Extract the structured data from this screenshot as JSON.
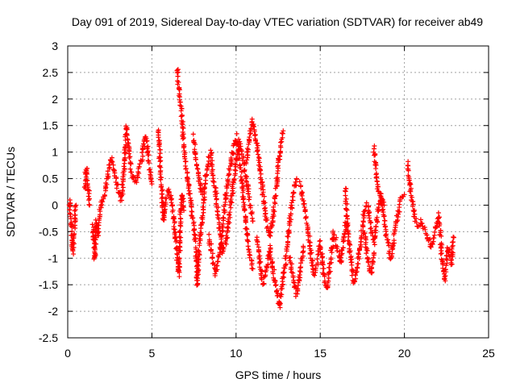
{
  "chart_data": {
    "type": "scatter",
    "title": "Day 091 of 2019, Sidereal Day-to-day VTEC variation (SDTVAR) for receiver ab49",
    "xlabel": "GPS time / hours",
    "ylabel": "SDTVAR / TECUs",
    "xlim": [
      0,
      25
    ],
    "ylim": [
      -2.5,
      3
    ],
    "x_ticks": [
      0,
      5,
      10,
      15,
      20,
      25
    ],
    "x_tick_labels": [
      "0",
      "5",
      "10",
      "15",
      "20",
      "25"
    ],
    "y_ticks": [
      -2.5,
      -2,
      -1.5,
      -1,
      -0.5,
      0,
      0.5,
      1,
      1.5,
      2,
      2.5,
      3
    ],
    "y_tick_labels": [
      "-2.5",
      "-2",
      "-1.5",
      "-1",
      "-0.5",
      "0",
      "0.5",
      "1",
      "1.5",
      "2",
      "2.5",
      "3"
    ],
    "grid": true,
    "marker": "+",
    "color": "#ff0000",
    "series": [
      {
        "name": "SDTVAR",
        "tracks": [
          [
            [
              0.1,
              0.1
            ],
            [
              0.2,
              -0.4
            ],
            [
              0.3,
              -0.9
            ],
            [
              0.4,
              -0.4
            ],
            [
              0.5,
              0.0
            ]
          ],
          [
            [
              1.0,
              0.3
            ],
            [
              1.1,
              0.7
            ],
            [
              1.2,
              0.4
            ],
            [
              1.3,
              0.0
            ]
          ],
          [
            [
              1.5,
              -0.4
            ],
            [
              1.6,
              -1.0
            ],
            [
              1.7,
              -0.3
            ],
            [
              1.8,
              -0.6
            ],
            [
              1.9,
              -0.2
            ],
            [
              2.0,
              0.1
            ],
            [
              2.2,
              0.2
            ],
            [
              2.4,
              0.6
            ],
            [
              2.6,
              0.9
            ],
            [
              2.8,
              0.6
            ],
            [
              3.0,
              0.3
            ],
            [
              3.2,
              0.1
            ],
            [
              3.4,
              0.9
            ],
            [
              3.5,
              1.5
            ],
            [
              3.6,
              1.1
            ],
            [
              3.8,
              0.6
            ],
            [
              4.0,
              0.4
            ],
            [
              4.2,
              0.6
            ],
            [
              4.4,
              0.9
            ],
            [
              4.6,
              1.3
            ],
            [
              4.8,
              0.9
            ],
            [
              5.0,
              0.4
            ]
          ],
          [
            [
              5.4,
              1.4
            ],
            [
              5.5,
              0.7
            ],
            [
              5.6,
              0.2
            ],
            [
              5.7,
              -0.3
            ],
            [
              5.8,
              0.1
            ],
            [
              6.0,
              0.3
            ],
            [
              6.2,
              0.0
            ],
            [
              6.4,
              -0.6
            ],
            [
              6.6,
              -1.3
            ],
            [
              6.7,
              -0.2
            ],
            [
              6.8,
              0.2
            ],
            [
              6.9,
              -0.1
            ]
          ],
          [
            [
              6.5,
              2.6
            ],
            [
              6.6,
              2.2
            ],
            [
              6.7,
              1.9
            ],
            [
              6.8,
              1.6
            ],
            [
              6.9,
              1.1
            ],
            [
              7.0,
              0.8
            ],
            [
              7.2,
              0.3
            ],
            [
              7.4,
              -0.2
            ],
            [
              7.6,
              -0.8
            ],
            [
              7.7,
              -1.5
            ],
            [
              7.8,
              -0.8
            ],
            [
              8.0,
              -0.2
            ],
            [
              8.2,
              0.5
            ],
            [
              8.4,
              0.9
            ]
          ],
          [
            [
              7.5,
              1.3
            ],
            [
              7.6,
              0.9
            ],
            [
              7.8,
              0.5
            ],
            [
              8.0,
              0.2
            ]
          ],
          [
            [
              8.5,
              1.0
            ],
            [
              8.6,
              0.6
            ],
            [
              8.8,
              0.2
            ],
            [
              9.0,
              -0.4
            ],
            [
              9.2,
              -0.9
            ],
            [
              9.4,
              -0.7
            ],
            [
              9.6,
              -0.2
            ],
            [
              9.8,
              0.3
            ],
            [
              10.0,
              0.8
            ],
            [
              10.2,
              1.2
            ],
            [
              10.4,
              0.9
            ],
            [
              10.6,
              0.5
            ],
            [
              10.8,
              0.1
            ],
            [
              11.0,
              -0.3
            ]
          ],
          [
            [
              8.4,
              -0.6
            ],
            [
              8.6,
              -1.0
            ],
            [
              8.8,
              -1.3
            ],
            [
              9.0,
              -0.9
            ],
            [
              9.2,
              -0.4
            ],
            [
              9.4,
              0.2
            ],
            [
              9.6,
              0.6
            ],
            [
              9.8,
              1.0
            ],
            [
              10.0,
              1.3
            ],
            [
              10.2,
              0.9
            ],
            [
              10.4,
              0.3
            ],
            [
              10.6,
              -0.4
            ],
            [
              10.8,
              -0.9
            ],
            [
              11.0,
              -1.2
            ]
          ],
          [
            [
              10.6,
              0.8
            ],
            [
              10.8,
              1.3
            ],
            [
              11.0,
              1.6
            ],
            [
              11.2,
              1.2
            ],
            [
              11.4,
              0.7
            ],
            [
              11.6,
              0.2
            ],
            [
              11.8,
              -0.3
            ],
            [
              12.0,
              -0.6
            ],
            [
              12.2,
              -0.2
            ],
            [
              12.4,
              0.4
            ],
            [
              12.6,
              1.0
            ],
            [
              12.8,
              1.4
            ]
          ],
          [
            [
              11.2,
              -0.6
            ],
            [
              11.4,
              -1.0
            ],
            [
              11.6,
              -1.5
            ],
            [
              11.8,
              -1.2
            ],
            [
              12.0,
              -0.8
            ],
            [
              12.2,
              -1.2
            ],
            [
              12.4,
              -1.6
            ],
            [
              12.6,
              -1.9
            ],
            [
              12.8,
              -1.4
            ],
            [
              13.0,
              -0.9
            ],
            [
              13.2,
              -0.3
            ],
            [
              13.4,
              0.2
            ],
            [
              13.6,
              0.5
            ]
          ],
          [
            [
              13.2,
              -1.0
            ],
            [
              13.4,
              -1.4
            ],
            [
              13.6,
              -1.7
            ],
            [
              13.8,
              -1.3
            ],
            [
              14.0,
              -0.8
            ]
          ],
          [
            [
              13.8,
              0.4
            ],
            [
              14.0,
              0.1
            ],
            [
              14.2,
              -0.3
            ],
            [
              14.4,
              -0.8
            ],
            [
              14.6,
              -1.3
            ],
            [
              14.8,
              -1.1
            ],
            [
              15.0,
              -0.7
            ],
            [
              15.2,
              -1.3
            ],
            [
              15.4,
              -1.6
            ],
            [
              15.6,
              -1.1
            ],
            [
              15.8,
              -0.5
            ],
            [
              16.0,
              -0.8
            ],
            [
              16.2,
              -1.1
            ],
            [
              16.4,
              -0.6
            ],
            [
              16.6,
              -0.2
            ]
          ],
          [
            [
              16.5,
              0.3
            ],
            [
              16.6,
              -0.3
            ],
            [
              16.8,
              -1.0
            ],
            [
              17.0,
              -1.5
            ],
            [
              17.2,
              -1.2
            ],
            [
              17.4,
              -0.7
            ],
            [
              17.6,
              -0.2
            ],
            [
              17.8,
              0.0
            ],
            [
              18.0,
              -0.4
            ],
            [
              18.2,
              -0.7
            ],
            [
              18.4,
              -0.2
            ],
            [
              18.6,
              0.2
            ],
            [
              18.8,
              0.0
            ]
          ],
          [
            [
              17.6,
              -0.5
            ],
            [
              17.8,
              -1.0
            ],
            [
              18.0,
              -1.3
            ],
            [
              18.2,
              -0.9
            ]
          ],
          [
            [
              18.2,
              1.1
            ],
            [
              18.3,
              0.7
            ],
            [
              18.4,
              0.4
            ],
            [
              18.6,
              0.1
            ],
            [
              18.8,
              -0.3
            ],
            [
              19.0,
              -0.7
            ],
            [
              19.2,
              -1.0
            ],
            [
              19.4,
              -0.6
            ],
            [
              19.6,
              -0.2
            ],
            [
              19.8,
              0.1
            ],
            [
              20.0,
              0.2
            ]
          ],
          [
            [
              20.2,
              0.8
            ],
            [
              20.3,
              0.5
            ],
            [
              20.4,
              0.2
            ],
            [
              20.6,
              -0.2
            ],
            [
              20.8,
              -0.4
            ],
            [
              21.0,
              -0.3
            ],
            [
              21.2,
              -0.5
            ],
            [
              21.4,
              -0.6
            ],
            [
              21.6,
              -0.8
            ],
            [
              21.8,
              -0.5
            ],
            [
              22.0,
              -0.2
            ],
            [
              22.1,
              -0.4
            ],
            [
              22.2,
              -0.9
            ],
            [
              22.4,
              -1.4
            ],
            [
              22.6,
              -0.8
            ],
            [
              22.8,
              -1.1
            ],
            [
              22.9,
              -0.6
            ]
          ]
        ]
      }
    ]
  }
}
